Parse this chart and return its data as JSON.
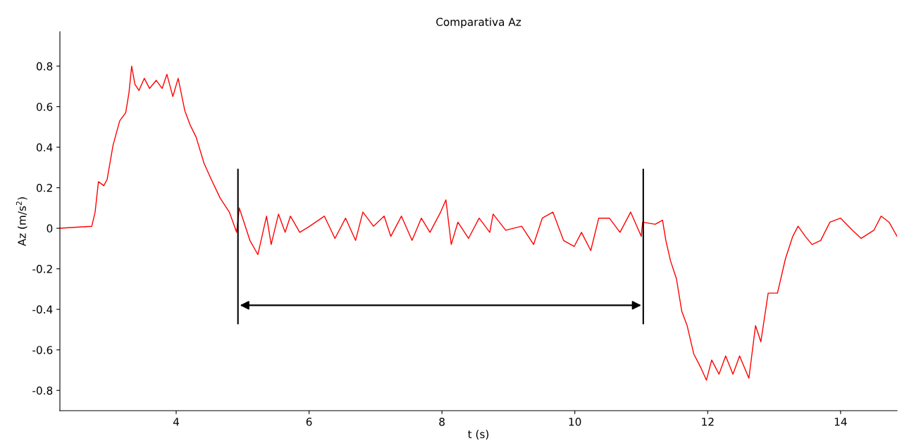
{
  "chart_data": {
    "type": "line",
    "title": "Comparativa Az",
    "xlabel": "t (s)",
    "ylabel": "Az (m/s$^{2}$)",
    "x": [
      2.25,
      2.73,
      2.78,
      2.83,
      2.91,
      2.96,
      3.05,
      3.15,
      3.24,
      3.29,
      3.33,
      3.38,
      3.44,
      3.52,
      3.6,
      3.7,
      3.79,
      3.86,
      3.95,
      4.03,
      4.13,
      4.21,
      4.3,
      4.42,
      4.53,
      4.66,
      4.8,
      4.91,
      4.95,
      5.11,
      5.23,
      5.36,
      5.43,
      5.54,
      5.64,
      5.72,
      5.86,
      6.01,
      6.23,
      6.39,
      6.55,
      6.7,
      6.81,
      6.97,
      7.13,
      7.23,
      7.39,
      7.55,
      7.69,
      7.82,
      7.98,
      8.06,
      8.14,
      8.24,
      8.4,
      8.56,
      8.72,
      8.77,
      8.96,
      9.2,
      9.38,
      9.51,
      9.67,
      9.83,
      9.99,
      10.1,
      10.24,
      10.36,
      10.52,
      10.68,
      10.84,
      11.0,
      11.02,
      11.21,
      11.32,
      11.37,
      11.44,
      11.53,
      11.61,
      11.69,
      11.79,
      11.9,
      11.98,
      12.06,
      12.17,
      12.27,
      12.38,
      12.48,
      12.62,
      12.72,
      12.8,
      12.91,
      13.05,
      13.17,
      13.28,
      13.36,
      13.47,
      13.57,
      13.7,
      13.84,
      14.0,
      14.18,
      14.31,
      14.5,
      14.61,
      14.73,
      14.85
    ],
    "series": [
      {
        "color": "#ff0000",
        "values": [
          0,
          0.01,
          0.08,
          0.23,
          0.21,
          0.24,
          0.41,
          0.53,
          0.57,
          0.67,
          0.8,
          0.71,
          0.68,
          0.74,
          0.69,
          0.73,
          0.69,
          0.76,
          0.65,
          0.74,
          0.58,
          0.51,
          0.45,
          0.32,
          0.24,
          0.15,
          0.08,
          -0.02,
          0.1,
          -0.06,
          -0.13,
          0.06,
          -0.08,
          0.07,
          -0.02,
          0.06,
          -0.02,
          0.01,
          0.06,
          -0.05,
          0.05,
          -0.06,
          0.08,
          0.01,
          0.06,
          -0.04,
          0.06,
          -0.06,
          0.05,
          -0.02,
          0.08,
          0.14,
          -0.08,
          0.03,
          -0.05,
          0.05,
          -0.02,
          0.07,
          -0.01,
          0.01,
          -0.08,
          0.05,
          0.08,
          -0.06,
          -0.09,
          -0.02,
          -0.11,
          0.05,
          0.05,
          -0.02,
          0.08,
          -0.04,
          0.03,
          0.02,
          0.04,
          -0.06,
          -0.16,
          -0.25,
          -0.41,
          -0.48,
          -0.62,
          -0.69,
          -0.75,
          -0.65,
          -0.72,
          -0.63,
          -0.72,
          -0.63,
          -0.74,
          -0.48,
          -0.56,
          -0.32,
          -0.32,
          -0.15,
          -0.04,
          0.01,
          -0.04,
          -0.08,
          -0.06,
          0.03,
          0.05,
          -0.01,
          -0.05,
          -0.01,
          0.06,
          0.03,
          -0.04
        ]
      }
    ],
    "xlim": [
      2.25,
      14.85
    ],
    "ylim": [
      -0.9,
      0.97
    ],
    "xticks": [
      4,
      6,
      8,
      10,
      12,
      14
    ],
    "yticks": [
      -0.8,
      -0.6,
      -0.4,
      -0.2,
      0,
      0.2,
      0.4,
      0.6,
      0.8
    ],
    "grid": false,
    "marker": "none",
    "line_style": "solid"
  }
}
